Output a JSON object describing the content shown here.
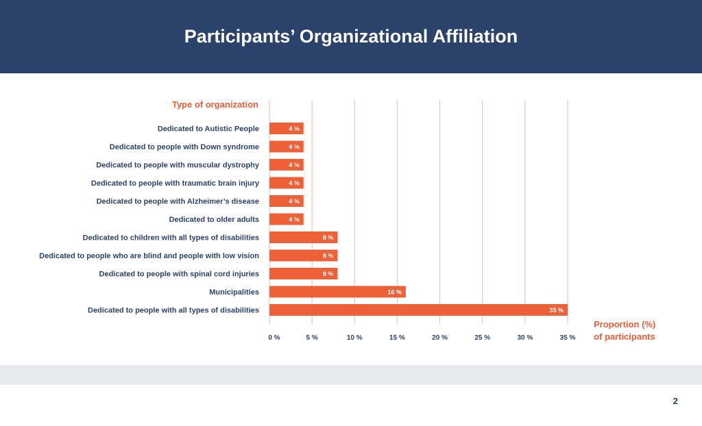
{
  "header": {
    "title": "Participants’ Organizational Affiliation"
  },
  "page_number": "2",
  "colors": {
    "bar": "#ee6037",
    "accent": "#ee6037",
    "header_bg": "#2b436a",
    "label_text": "#2b436a",
    "grid": "#f2b8a6"
  },
  "chart_data": {
    "type": "bar",
    "orientation": "horizontal",
    "title": "",
    "ylabel": "Type of organization",
    "xlabel_lines": [
      "Proportion (%)",
      "of participants"
    ],
    "categories": [
      "Dedicated to Autistic People",
      "Dedicated to people with Down syndrome",
      "Dedicated to people with muscular dystrophy",
      "Dedicated to people with traumatic brain injury",
      "Dedicated to people with Alzheimer’s disease",
      "Dedicated to older adults",
      "Dedicated to children with all types of disabilities",
      "Dedicated to people who are blind and people with low vision",
      "Dedicated to people with spinal cord injuries",
      "Municipalities",
      "Dedicated to people with all types of disabilities"
    ],
    "values": [
      4,
      4,
      4,
      4,
      4,
      4,
      8,
      8,
      8,
      16,
      35
    ],
    "data_labels": [
      "4 %",
      "4 %",
      "4 %",
      "4 %",
      "4 %",
      "4 %",
      "8 %",
      "8 %",
      "8 %",
      "16 %",
      "35 %"
    ],
    "xticks": [
      0,
      5,
      10,
      15,
      20,
      25,
      30,
      35
    ],
    "xtick_labels": [
      "0 %",
      "5 %",
      "10 %",
      "15 %",
      "20 %",
      "25 %",
      "30 %",
      "35 %"
    ],
    "xlim": [
      0,
      35
    ],
    "grid": true
  }
}
